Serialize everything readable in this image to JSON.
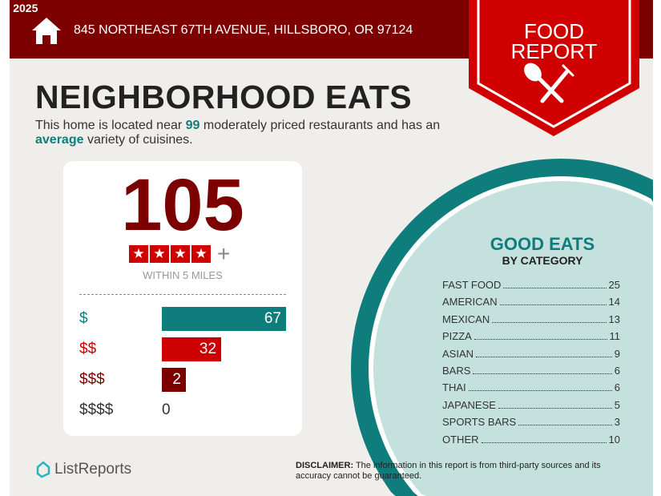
{
  "copyright": "© 2025",
  "header": {
    "address": "845 NORTHEAST 67TH AVENUE, HILLSBORO, OR 97124",
    "ribbon_line1": "FOOD",
    "ribbon_line2": "REPORT"
  },
  "title": "NEIGHBORHOOD EATS",
  "intro": {
    "p1": "This home is located near ",
    "count": "99",
    "p2": " moderately priced restaurants and has an ",
    "variety": "average",
    "p3": " variety of cuisines."
  },
  "summary": {
    "total": "105",
    "rating_stars": 4,
    "plus": "+",
    "within": "WITHIN 5 MILES"
  },
  "price_levels": [
    {
      "label": "$",
      "value": 67,
      "color": "#0f7d7b"
    },
    {
      "label": "$$",
      "value": 32,
      "color": "#cc0000"
    },
    {
      "label": "$$$",
      "value": 2,
      "color": "#7d0000"
    },
    {
      "label": "$$$$",
      "value": 0,
      "color": "#333333"
    }
  ],
  "good_eats": {
    "title": "GOOD EATS",
    "subtitle": "BY CATEGORY",
    "categories": [
      {
        "name": "FAST FOOD",
        "count": "25"
      },
      {
        "name": "AMERICAN",
        "count": "14"
      },
      {
        "name": "MEXICAN",
        "count": "13"
      },
      {
        "name": "PIZZA",
        "count": "11"
      },
      {
        "name": "ASIAN",
        "count": "9"
      },
      {
        "name": "BARS",
        "count": "6"
      },
      {
        "name": "THAI",
        "count": "6"
      },
      {
        "name": "JAPANESE",
        "count": "5"
      },
      {
        "name": "SPORTS BARS",
        "count": "3"
      },
      {
        "name": "OTHER",
        "count": "10"
      }
    ]
  },
  "footer": {
    "logo": "ListReports",
    "disclaimer_label": "DISCLAIMER:",
    "disclaimer": " The information in this report is from third-party sources and its accuracy cannot be guaranteed."
  },
  "colors": {
    "dark_red": "#7d0000",
    "red": "#cc0000",
    "teal": "#0f7d7b",
    "light_teal": "#c5e1de"
  }
}
